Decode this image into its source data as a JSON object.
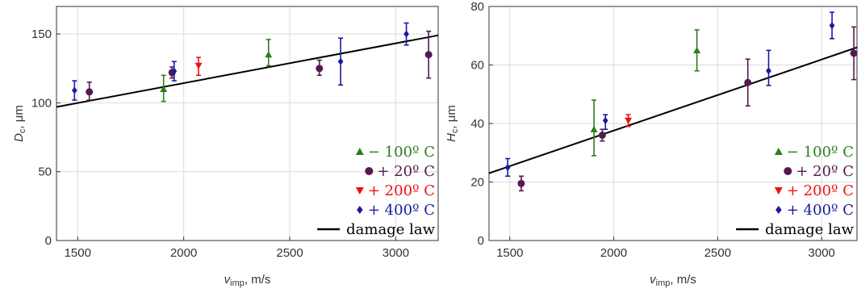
{
  "chart_data": [
    {
      "type": "scatter",
      "ylabel_symbol": "D",
      "ylabel_sub": "c",
      "ylabel_unit": ", μm",
      "xlabel_symbol": "v",
      "xlabel_sub": "imp",
      "xlabel_unit": ", m/s",
      "xlim": [
        1400,
        3200
      ],
      "ylim": [
        0,
        170
      ],
      "xticks": [
        1500,
        2000,
        2500,
        3000
      ],
      "yticks": [
        0,
        50,
        100,
        150
      ],
      "grid": true,
      "legend_position": "bottom-right",
      "series": [
        {
          "key": "m100",
          "name": "− 100º C",
          "color": "#2e7d1e",
          "marker": "triangle-up",
          "points": [
            {
              "x": 1905,
              "y": 110,
              "lo": 101,
              "hi": 120
            },
            {
              "x": 2400,
              "y": 135,
              "lo": 127,
              "hi": 146
            }
          ]
        },
        {
          "key": "p20",
          "name": "+ 20º C",
          "color": "#55194f",
          "marker": "circle",
          "points": [
            {
              "x": 1555,
              "y": 108,
              "lo": 102,
              "hi": 115
            },
            {
              "x": 1945,
              "y": 122,
              "lo": 118,
              "hi": 126
            },
            {
              "x": 2640,
              "y": 125,
              "lo": 120,
              "hi": 131
            },
            {
              "x": 3155,
              "y": 135,
              "lo": 118,
              "hi": 152
            }
          ]
        },
        {
          "key": "p200",
          "name": "+ 200º C",
          "color": "#ee1111",
          "marker": "triangle-down",
          "points": [
            {
              "x": 2070,
              "y": 127,
              "lo": 120,
              "hi": 133
            }
          ]
        },
        {
          "key": "p400",
          "name": "+ 400º C",
          "color": "#1a1aa0",
          "marker": "diamond",
          "points": [
            {
              "x": 1485,
              "y": 109,
              "lo": 102,
              "hi": 116
            },
            {
              "x": 1955,
              "y": 123,
              "lo": 116,
              "hi": 130
            },
            {
              "x": 2740,
              "y": 130,
              "lo": 113,
              "hi": 147
            },
            {
              "x": 3050,
              "y": 150,
              "lo": 142,
              "hi": 158
            }
          ]
        }
      ],
      "fit": {
        "name": "damage law",
        "x": [
          1400,
          3200
        ],
        "y": [
          97,
          149
        ]
      }
    },
    {
      "type": "scatter",
      "ylabel_symbol": "H",
      "ylabel_sub": "c",
      "ylabel_unit": ", μm",
      "xlabel_symbol": "v",
      "xlabel_sub": "imp",
      "xlabel_unit": ", m/s",
      "xlim": [
        1400,
        3170
      ],
      "ylim": [
        0,
        80
      ],
      "xticks": [
        1500,
        2000,
        2500,
        3000
      ],
      "yticks": [
        0,
        20,
        40,
        60,
        80
      ],
      "grid": true,
      "legend_position": "bottom-right",
      "series": [
        {
          "key": "m100",
          "name": "− 100º C",
          "color": "#2e7d1e",
          "marker": "triangle-up",
          "points": [
            {
              "x": 1905,
              "y": 38,
              "lo": 29,
              "hi": 48
            },
            {
              "x": 2400,
              "y": 65,
              "lo": 58,
              "hi": 72
            }
          ]
        },
        {
          "key": "p20",
          "name": "+ 20º C",
          "color": "#55194f",
          "marker": "circle",
          "points": [
            {
              "x": 1555,
              "y": 19.5,
              "lo": 17,
              "hi": 22
            },
            {
              "x": 1945,
              "y": 36,
              "lo": 34,
              "hi": 38
            },
            {
              "x": 2645,
              "y": 54,
              "lo": 46,
              "hi": 62
            },
            {
              "x": 3155,
              "y": 64,
              "lo": 55,
              "hi": 73
            }
          ]
        },
        {
          "key": "p200",
          "name": "+ 200º C",
          "color": "#ee1111",
          "marker": "triangle-down",
          "points": [
            {
              "x": 2070,
              "y": 41,
              "lo": 39,
              "hi": 43
            }
          ]
        },
        {
          "key": "p400",
          "name": "+ 400º C",
          "color": "#1a1aa0",
          "marker": "diamond",
          "points": [
            {
              "x": 1490,
              "y": 25,
              "lo": 22,
              "hi": 28
            },
            {
              "x": 1960,
              "y": 41,
              "lo": 38,
              "hi": 43
            },
            {
              "x": 2745,
              "y": 58,
              "lo": 53,
              "hi": 65
            },
            {
              "x": 3050,
              "y": 73.5,
              "lo": 69,
              "hi": 78
            }
          ]
        }
      ],
      "fit": {
        "name": "damage law",
        "x": [
          1400,
          3170
        ],
        "y": [
          23,
          66
        ]
      }
    }
  ]
}
